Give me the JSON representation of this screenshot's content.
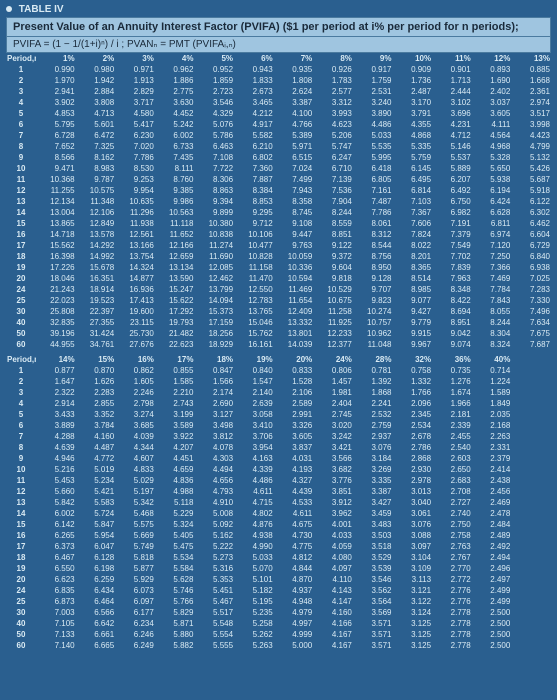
{
  "table_marker": "TABLE IV",
  "title": "Present Value of an Annuity Interest Factor (PVIFA) ($1 per period at i% per period for n periods);",
  "formula": "PVIFA = (1 − 1/(1+i)ⁿ) / i ;  PVANₙ = PMT (PVIFAᵢ,ₙ)",
  "section1": {
    "header_label": "Period,n",
    "cols": [
      "1%",
      "2%",
      "3%",
      "4%",
      "5%",
      "6%",
      "7%",
      "8%",
      "9%",
      "10%",
      "11%",
      "12%",
      "13%"
    ],
    "rows": [
      [
        "1",
        "0.990",
        "0.980",
        "0.971",
        "0.962",
        "0.952",
        "0.943",
        "0.935",
        "0.926",
        "0.917",
        "0.909",
        "0.901",
        "0.893",
        "0.885"
      ],
      [
        "2",
        "1.970",
        "1.942",
        "1.913",
        "1.886",
        "1.859",
        "1.833",
        "1.808",
        "1.783",
        "1.759",
        "1.736",
        "1.713",
        "1.690",
        "1.668"
      ],
      [
        "3",
        "2.941",
        "2.884",
        "2.829",
        "2.775",
        "2.723",
        "2.673",
        "2.624",
        "2.577",
        "2.531",
        "2.487",
        "2.444",
        "2.402",
        "2.361"
      ],
      [
        "4",
        "3.902",
        "3.808",
        "3.717",
        "3.630",
        "3.546",
        "3.465",
        "3.387",
        "3.312",
        "3.240",
        "3.170",
        "3.102",
        "3.037",
        "2.974"
      ],
      [
        "5",
        "4.853",
        "4.713",
        "4.580",
        "4.452",
        "4.329",
        "4.212",
        "4.100",
        "3.993",
        "3.890",
        "3.791",
        "3.696",
        "3.605",
        "3.517"
      ],
      [
        "6",
        "5.795",
        "5.601",
        "5.417",
        "5.242",
        "5.076",
        "4.917",
        "4.766",
        "4.623",
        "4.486",
        "4.355",
        "4.231",
        "4.111",
        "3.998"
      ],
      [
        "7",
        "6.728",
        "6.472",
        "6.230",
        "6.002",
        "5.786",
        "5.582",
        "5.389",
        "5.206",
        "5.033",
        "4.868",
        "4.712",
        "4.564",
        "4.423"
      ],
      [
        "8",
        "7.652",
        "7.325",
        "7.020",
        "6.733",
        "6.463",
        "6.210",
        "5.971",
        "5.747",
        "5.535",
        "5.335",
        "5.146",
        "4.968",
        "4.799"
      ],
      [
        "9",
        "8.566",
        "8.162",
        "7.786",
        "7.435",
        "7.108",
        "6.802",
        "6.515",
        "6.247",
        "5.995",
        "5.759",
        "5.537",
        "5.328",
        "5.132"
      ],
      [
        "10",
        "9.471",
        "8.983",
        "8.530",
        "8.111",
        "7.722",
        "7.360",
        "7.024",
        "6.710",
        "6.418",
        "6.145",
        "5.889",
        "5.650",
        "5.426"
      ],
      [
        "11",
        "10.368",
        "9.787",
        "9.253",
        "8.760",
        "8.306",
        "7.887",
        "7.499",
        "7.139",
        "6.805",
        "6.495",
        "6.207",
        "5.938",
        "5.687"
      ],
      [
        "12",
        "11.255",
        "10.575",
        "9.954",
        "9.385",
        "8.863",
        "8.384",
        "7.943",
        "7.536",
        "7.161",
        "6.814",
        "6.492",
        "6.194",
        "5.918"
      ],
      [
        "13",
        "12.134",
        "11.348",
        "10.635",
        "9.986",
        "9.394",
        "8.853",
        "8.358",
        "7.904",
        "7.487",
        "7.103",
        "6.750",
        "6.424",
        "6.122"
      ],
      [
        "14",
        "13.004",
        "12.106",
        "11.296",
        "10.563",
        "9.899",
        "9.295",
        "8.745",
        "8.244",
        "7.786",
        "7.367",
        "6.982",
        "6.628",
        "6.302"
      ],
      [
        "15",
        "13.865",
        "12.849",
        "11.938",
        "11.118",
        "10.380",
        "9.712",
        "9.108",
        "8.559",
        "8.061",
        "7.606",
        "7.191",
        "6.811",
        "6.462"
      ],
      [
        "16",
        "14.718",
        "13.578",
        "12.561",
        "11.652",
        "10.838",
        "10.106",
        "9.447",
        "8.851",
        "8.312",
        "7.824",
        "7.379",
        "6.974",
        "6.604"
      ],
      [
        "17",
        "15.562",
        "14.292",
        "13.166",
        "12.166",
        "11.274",
        "10.477",
        "9.763",
        "9.122",
        "8.544",
        "8.022",
        "7.549",
        "7.120",
        "6.729"
      ],
      [
        "18",
        "16.398",
        "14.992",
        "13.754",
        "12.659",
        "11.690",
        "10.828",
        "10.059",
        "9.372",
        "8.756",
        "8.201",
        "7.702",
        "7.250",
        "6.840"
      ],
      [
        "19",
        "17.226",
        "15.678",
        "14.324",
        "13.134",
        "12.085",
        "11.158",
        "10.336",
        "9.604",
        "8.950",
        "8.365",
        "7.839",
        "7.366",
        "6.938"
      ],
      [
        "20",
        "18.046",
        "16.351",
        "14.877",
        "13.590",
        "12.462",
        "11.470",
        "10.594",
        "9.818",
        "9.128",
        "8.514",
        "7.963",
        "7.469",
        "7.025"
      ],
      [
        "24",
        "21.243",
        "18.914",
        "16.936",
        "15.247",
        "13.799",
        "12.550",
        "11.469",
        "10.529",
        "9.707",
        "8.985",
        "8.348",
        "7.784",
        "7.283"
      ],
      [
        "25",
        "22.023",
        "19.523",
        "17.413",
        "15.622",
        "14.094",
        "12.783",
        "11.654",
        "10.675",
        "9.823",
        "9.077",
        "8.422",
        "7.843",
        "7.330"
      ],
      [
        "30",
        "25.808",
        "22.397",
        "19.600",
        "17.292",
        "15.373",
        "13.765",
        "12.409",
        "11.258",
        "10.274",
        "9.427",
        "8.694",
        "8.055",
        "7.496"
      ],
      [
        "40",
        "32.835",
        "27.355",
        "23.115",
        "19.793",
        "17.159",
        "15.046",
        "13.332",
        "11.925",
        "10.757",
        "9.779",
        "8.951",
        "8.244",
        "7.634"
      ],
      [
        "50",
        "39.196",
        "31.424",
        "25.730",
        "21.482",
        "18.256",
        "15.762",
        "13.801",
        "12.233",
        "10.962",
        "9.915",
        "9.042",
        "8.304",
        "7.675"
      ],
      [
        "60",
        "44.955",
        "34.761",
        "27.676",
        "22.623",
        "18.929",
        "16.161",
        "14.039",
        "12.377",
        "11.048",
        "9.967",
        "9.074",
        "8.324",
        "7.687"
      ]
    ]
  },
  "section2": {
    "header_label": "Period,n",
    "cols": [
      "14%",
      "15%",
      "16%",
      "17%",
      "18%",
      "19%",
      "20%",
      "24%",
      "28%",
      "32%",
      "36%",
      "40%"
    ],
    "rows": [
      [
        "1",
        "0.877",
        "0.870",
        "0.862",
        "0.855",
        "0.847",
        "0.840",
        "0.833",
        "0.806",
        "0.781",
        "0.758",
        "0.735",
        "0.714"
      ],
      [
        "2",
        "1.647",
        "1.626",
        "1.605",
        "1.585",
        "1.566",
        "1.547",
        "1.528",
        "1.457",
        "1.392",
        "1.332",
        "1.276",
        "1.224"
      ],
      [
        "3",
        "2.322",
        "2.283",
        "2.246",
        "2.210",
        "2.174",
        "2.140",
        "2.106",
        "1.981",
        "1.868",
        "1.766",
        "1.674",
        "1.589"
      ],
      [
        "4",
        "2.914",
        "2.855",
        "2.798",
        "2.743",
        "2.690",
        "2.639",
        "2.589",
        "2.404",
        "2.241",
        "2.096",
        "1.966",
        "1.849"
      ],
      [
        "5",
        "3.433",
        "3.352",
        "3.274",
        "3.199",
        "3.127",
        "3.058",
        "2.991",
        "2.745",
        "2.532",
        "2.345",
        "2.181",
        "2.035"
      ],
      [
        "6",
        "3.889",
        "3.784",
        "3.685",
        "3.589",
        "3.498",
        "3.410",
        "3.326",
        "3.020",
        "2.759",
        "2.534",
        "2.339",
        "2.168"
      ],
      [
        "7",
        "4.288",
        "4.160",
        "4.039",
        "3.922",
        "3.812",
        "3.706",
        "3.605",
        "3.242",
        "2.937",
        "2.678",
        "2.455",
        "2.263"
      ],
      [
        "8",
        "4.639",
        "4.487",
        "4.344",
        "4.207",
        "4.078",
        "3.954",
        "3.837",
        "3.421",
        "3.076",
        "2.786",
        "2.540",
        "2.331"
      ],
      [
        "9",
        "4.946",
        "4.772",
        "4.607",
        "4.451",
        "4.303",
        "4.163",
        "4.031",
        "3.566",
        "3.184",
        "2.868",
        "2.603",
        "2.379"
      ],
      [
        "10",
        "5.216",
        "5.019",
        "4.833",
        "4.659",
        "4.494",
        "4.339",
        "4.193",
        "3.682",
        "3.269",
        "2.930",
        "2.650",
        "2.414"
      ],
      [
        "11",
        "5.453",
        "5.234",
        "5.029",
        "4.836",
        "4.656",
        "4.486",
        "4.327",
        "3.776",
        "3.335",
        "2.978",
        "2.683",
        "2.438"
      ],
      [
        "12",
        "5.660",
        "5.421",
        "5.197",
        "4.988",
        "4.793",
        "4.611",
        "4.439",
        "3.851",
        "3.387",
        "3.013",
        "2.708",
        "2.456"
      ],
      [
        "13",
        "5.842",
        "5.583",
        "5.342",
        "5.118",
        "4.910",
        "4.715",
        "4.533",
        "3.912",
        "3.427",
        "3.040",
        "2.727",
        "2.469"
      ],
      [
        "14",
        "6.002",
        "5.724",
        "5.468",
        "5.229",
        "5.008",
        "4.802",
        "4.611",
        "3.962",
        "3.459",
        "3.061",
        "2.740",
        "2.478"
      ],
      [
        "15",
        "6.142",
        "5.847",
        "5.575",
        "5.324",
        "5.092",
        "4.876",
        "4.675",
        "4.001",
        "3.483",
        "3.076",
        "2.750",
        "2.484"
      ],
      [
        "16",
        "6.265",
        "5.954",
        "5.669",
        "5.405",
        "5.162",
        "4.938",
        "4.730",
        "4.033",
        "3.503",
        "3.088",
        "2.758",
        "2.489"
      ],
      [
        "17",
        "6.373",
        "6.047",
        "5.749",
        "5.475",
        "5.222",
        "4.990",
        "4.775",
        "4.059",
        "3.518",
        "3.097",
        "2.763",
        "2.492"
      ],
      [
        "18",
        "6.467",
        "6.128",
        "5.818",
        "5.534",
        "5.273",
        "5.033",
        "4.812",
        "4.080",
        "3.529",
        "3.104",
        "2.767",
        "2.494"
      ],
      [
        "19",
        "6.550",
        "6.198",
        "5.877",
        "5.584",
        "5.316",
        "5.070",
        "4.844",
        "4.097",
        "3.539",
        "3.109",
        "2.770",
        "2.496"
      ],
      [
        "20",
        "6.623",
        "6.259",
        "5.929",
        "5.628",
        "5.353",
        "5.101",
        "4.870",
        "4.110",
        "3.546",
        "3.113",
        "2.772",
        "2.497"
      ],
      [
        "24",
        "6.835",
        "6.434",
        "6.073",
        "5.746",
        "5.451",
        "5.182",
        "4.937",
        "4.143",
        "3.562",
        "3.121",
        "2.776",
        "2.499"
      ],
      [
        "25",
        "6.873",
        "6.464",
        "6.097",
        "5.766",
        "5.467",
        "5.195",
        "4.948",
        "4.147",
        "3.564",
        "3.122",
        "2.776",
        "2.499"
      ],
      [
        "30",
        "7.003",
        "6.566",
        "6.177",
        "5.829",
        "5.517",
        "5.235",
        "4.979",
        "4.160",
        "3.569",
        "3.124",
        "2.778",
        "2.500"
      ],
      [
        "40",
        "7.105",
        "6.642",
        "6.234",
        "5.871",
        "5.548",
        "5.258",
        "4.997",
        "4.166",
        "3.571",
        "3.125",
        "2.778",
        "2.500"
      ],
      [
        "50",
        "7.133",
        "6.661",
        "6.246",
        "5.880",
        "5.554",
        "5.262",
        "4.999",
        "4.167",
        "3.571",
        "3.125",
        "2.778",
        "2.500"
      ],
      [
        "60",
        "7.140",
        "6.665",
        "6.249",
        "5.882",
        "5.555",
        "5.263",
        "5.000",
        "4.167",
        "3.571",
        "3.125",
        "2.778",
        "2.500"
      ]
    ]
  },
  "styles": {
    "bg": "#2a5f8f",
    "header_bg": "#9fc5e0",
    "text": "#d9eaf3",
    "font_size_data": 8,
    "font_size_title": 11
  }
}
